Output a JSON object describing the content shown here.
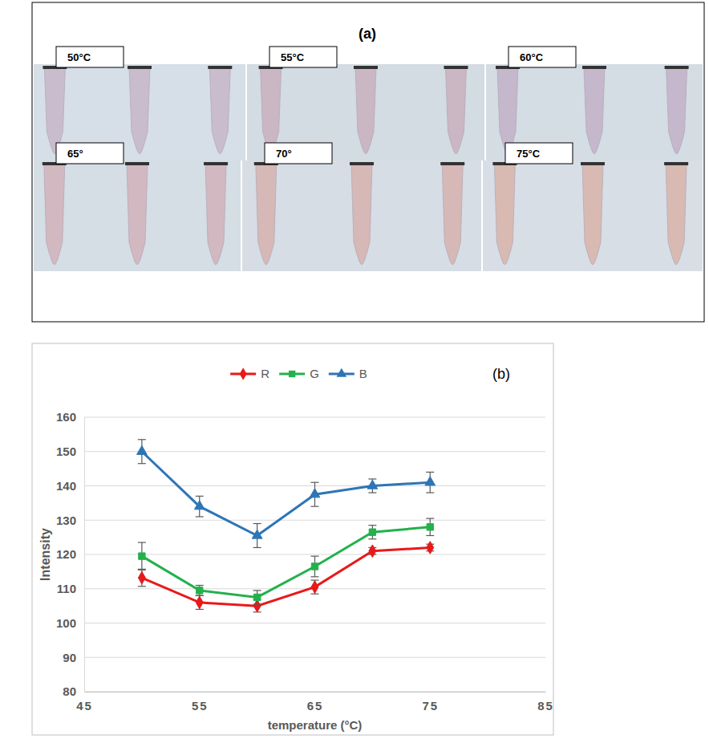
{
  "photo_panel": {
    "label": "(a)",
    "temperatures": [
      "50°C",
      "55°C",
      "60°C",
      "65°",
      "70°",
      "75°C"
    ]
  },
  "chart_data": {
    "type": "line",
    "panel_label": "(b)",
    "x_label": "temperature (°C)",
    "y_label": "Intensity",
    "x": [
      50,
      55,
      60,
      65,
      70,
      75
    ],
    "xlim": [
      45,
      85
    ],
    "xticks": [
      45,
      55,
      65,
      75,
      85
    ],
    "ylim": [
      80,
      160
    ],
    "yticks": [
      80,
      90,
      100,
      110,
      120,
      130,
      140,
      150,
      160
    ],
    "grid": true,
    "legend": "top",
    "series": [
      {
        "name": "R",
        "color": "#e8191a",
        "marker": "diamond",
        "values": [
          113.2,
          106,
          105,
          110.5,
          121,
          122
        ],
        "errors": [
          2.5,
          2,
          1.8,
          2,
          1,
          1
        ]
      },
      {
        "name": "G",
        "color": "#22b14c",
        "marker": "square",
        "values": [
          119.5,
          109.5,
          107.5,
          116.5,
          126.5,
          128
        ],
        "errors": [
          4,
          1.5,
          2,
          3,
          2,
          2.5
        ]
      },
      {
        "name": "B",
        "color": "#2e75b6",
        "marker": "triangle",
        "values": [
          150,
          134,
          125.5,
          137.5,
          140,
          141
        ],
        "errors": [
          3.5,
          3,
          3.5,
          3.5,
          2,
          3
        ]
      }
    ]
  }
}
